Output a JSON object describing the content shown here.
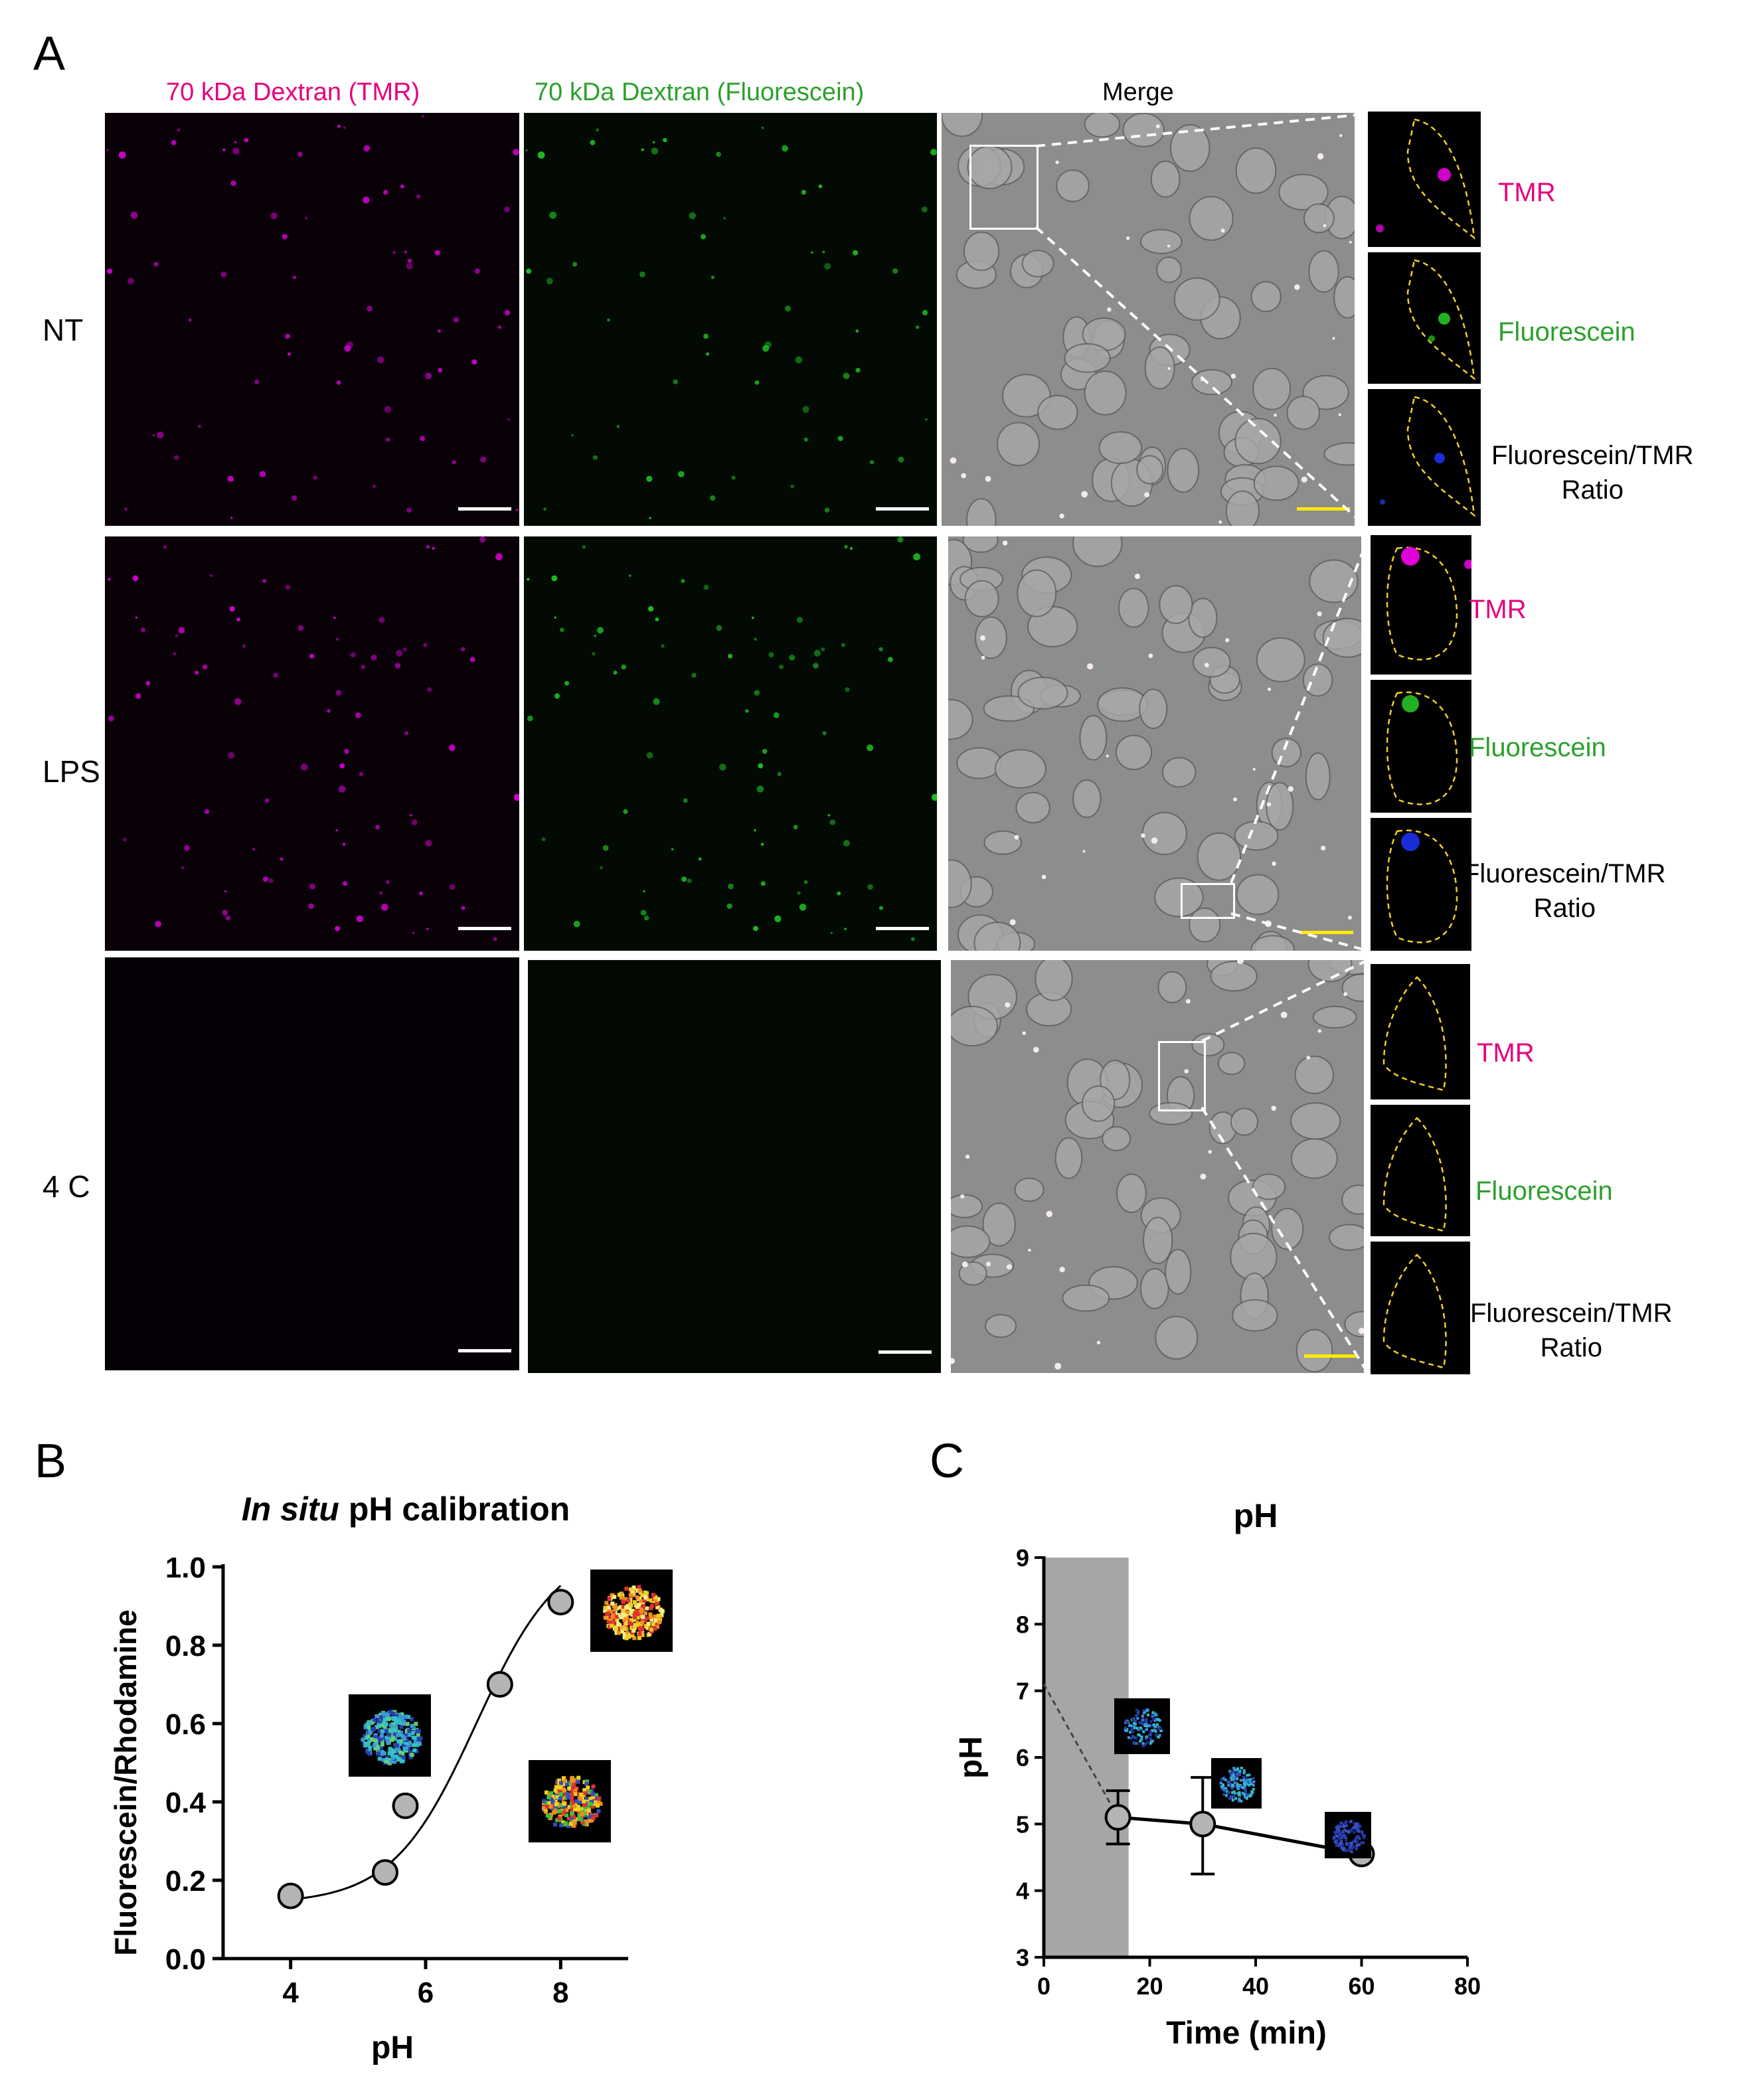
{
  "panels": {
    "A": "A",
    "B": "B",
    "C": "C"
  },
  "panelA": {
    "columns": [
      "70 kDa Dextran (TMR)",
      "70 kDa Dextran (Fluorescein)",
      "Merge"
    ],
    "rows": [
      "NT",
      "LPS",
      "4 C"
    ],
    "inset_labels": {
      "tmr": "TMR",
      "fluorescein": "Fluorescein",
      "ratio_line1": "Fluorescein/TMR",
      "ratio_line2": "Ratio"
    },
    "colors": {
      "tmr": "#e6007e",
      "fluorescein": "#2ca02c",
      "scalebar_white": "#ffffff",
      "scalebar_yellow": "#ffea00",
      "outline": "#f2d024"
    }
  },
  "chart_data": [
    {
      "type": "scatter",
      "title_italic": "In situ",
      "title_rest": " pH calibration",
      "xlabel": "pH",
      "ylabel": "Fluorescein/Rhodamine",
      "xlim": [
        3,
        9
      ],
      "ylim": [
        0,
        1.0
      ],
      "xticks": [
        4,
        6,
        8
      ],
      "yticks": [
        0.0,
        0.2,
        0.4,
        0.6,
        0.8,
        1.0
      ],
      "ytick_labels": [
        "0.0",
        "0.2",
        "0.4",
        "0.6",
        "0.8",
        "1.0"
      ],
      "points": [
        {
          "x": 4.0,
          "y": 0.16
        },
        {
          "x": 5.4,
          "y": 0.22
        },
        {
          "x": 5.7,
          "y": 0.39
        },
        {
          "x": 7.1,
          "y": 0.7
        },
        {
          "x": 8.0,
          "y": 0.91
        }
      ],
      "fit": "sigmoidal",
      "marker_color": "#b4b4b4"
    },
    {
      "type": "line",
      "title": "pH",
      "xlabel": "Time (min)",
      "ylabel": "pH",
      "xlim": [
        0,
        80
      ],
      "ylim": [
        3,
        9
      ],
      "xticks": [
        0,
        20,
        40,
        60,
        80
      ],
      "yticks": [
        3,
        4,
        5,
        6,
        7,
        8,
        9
      ],
      "shaded_x": [
        0,
        16
      ],
      "dashed_start": {
        "x": 0,
        "y": 7.1
      },
      "points": [
        {
          "x": 14,
          "y": 5.1,
          "err_low": 4.7,
          "err_high": 5.5
        },
        {
          "x": 30,
          "y": 5.0,
          "err_low": 4.25,
          "err_high": 5.7
        },
        {
          "x": 60,
          "y": 4.55
        }
      ],
      "marker_color": "#b4b4b4",
      "shade_color": "#a6a6a6"
    }
  ]
}
